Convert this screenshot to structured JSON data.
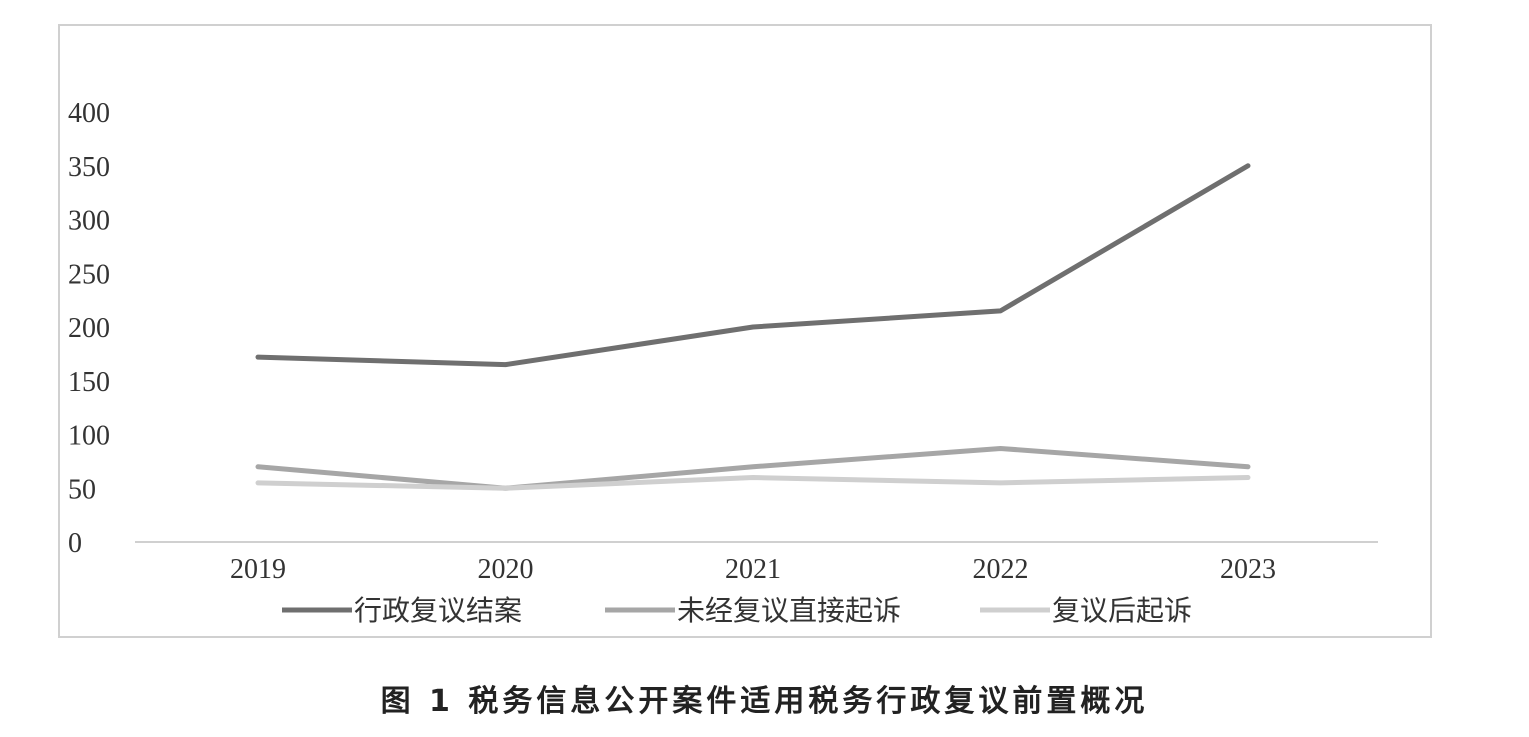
{
  "caption": "图 1   税务信息公开案件适用税务行政复议前置概况",
  "chart_data": {
    "type": "line",
    "categories": [
      "2019",
      "2020",
      "2021",
      "2022",
      "2023"
    ],
    "series": [
      {
        "name": "行政复议结案",
        "values": [
          172,
          165,
          200,
          215,
          350
        ],
        "color": "#6f6f6f"
      },
      {
        "name": "未经复议直接起诉",
        "values": [
          70,
          50,
          70,
          87,
          70
        ],
        "color": "#a6a6a6"
      },
      {
        "name": "复议后起诉",
        "values": [
          55,
          50,
          60,
          55,
          60
        ],
        "color": "#cfcfcf"
      }
    ],
    "yticks": [
      "0",
      "50",
      "100",
      "150",
      "200",
      "250",
      "300",
      "350",
      "400"
    ],
    "ylim": [
      0,
      400
    ],
    "grid": false,
    "legend": "bottom"
  }
}
